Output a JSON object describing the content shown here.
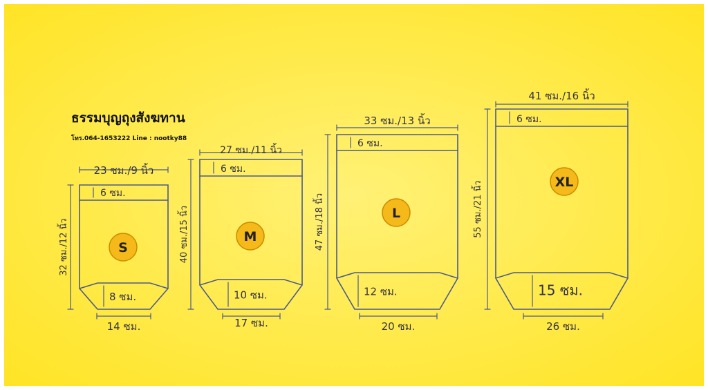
{
  "shop": {
    "name": "ธรรมบุญถุงสังฆทาน",
    "contact": "โทร.064-1653222  Line : nootky88"
  },
  "colors": {
    "background_center": "#FFF176",
    "background_edge": "#FFE426",
    "outline": "#4A5A8A",
    "badge_fill": "#F6B91A",
    "badge_stroke": "#C98A00"
  },
  "bags": [
    {
      "size": "S",
      "width_label": "23 ซม./9 นิ้ว",
      "height_label": "32 ซม./12 นิ้ว",
      "top_label": "6 ซม.",
      "gusset_label": "8 ซม.",
      "bottom_label": "14 ซม."
    },
    {
      "size": "M",
      "width_label": "27 ซม./11 นิ้ว",
      "height_label": "40 ซม./15 นิ้ว",
      "top_label": "6 ซม.",
      "gusset_label": "10 ซม.",
      "bottom_label": "17 ซม."
    },
    {
      "size": "L",
      "width_label": "33 ซม./13 นิ้ว",
      "height_label": "47 ซม./18 นิ้ว",
      "top_label": "6 ซม.",
      "gusset_label": "12 ซม.",
      "bottom_label": "20 ซม."
    },
    {
      "size": "XL",
      "width_label": "41 ซม./16 นิ้ว",
      "height_label": "55 ซม./21 นิ้ว",
      "top_label": "6 ซม.",
      "gusset_label": "15 ซม.",
      "bottom_label": "26 ซม."
    }
  ]
}
